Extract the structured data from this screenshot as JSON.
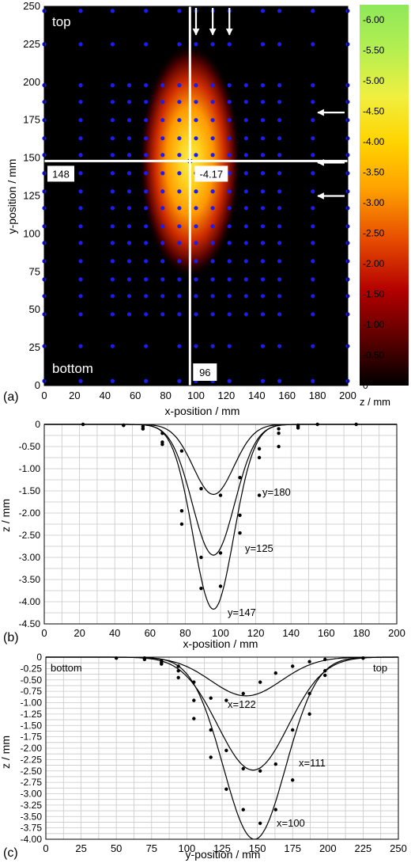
{
  "chart_data": [
    {
      "panel": "(a)",
      "type": "heatmap",
      "xlabel": "x-position / mm",
      "ylabel": "y-position / mm",
      "xlim": [
        0,
        200
      ],
      "ylim": [
        0,
        250
      ],
      "xticks": [
        0,
        20,
        40,
        60,
        80,
        100,
        120,
        140,
        160,
        180,
        200
      ],
      "yticks": [
        0,
        25,
        50,
        75,
        100,
        125,
        150,
        175,
        200,
        225,
        250
      ],
      "corner_labels": {
        "top": "top",
        "bottom": "bottom"
      },
      "crosshair": {
        "x": 96,
        "y": 148,
        "x_label": "96",
        "y_label": "148",
        "value_label": "-4.17"
      },
      "peak": {
        "x": 96,
        "y": 148,
        "z": -4.17,
        "sigma_x": 13,
        "sigma_y": 30
      },
      "measurement_grid": {
        "x": [
          0,
          24,
          45,
          56,
          67,
          78,
          89,
          100,
          111,
          122,
          133,
          144,
          155,
          177,
          200
        ],
        "y": [
          3,
          26,
          47,
          59,
          70,
          82,
          94,
          105,
          117,
          128,
          140,
          152,
          163,
          175,
          187,
          198,
          225,
          247
        ]
      },
      "arrows": [
        {
          "direction": "down",
          "x": 100
        },
        {
          "direction": "down",
          "x": 111
        },
        {
          "direction": "down",
          "x": 122
        },
        {
          "direction": "left",
          "y": 180
        },
        {
          "direction": "left",
          "y": 147
        },
        {
          "direction": "left",
          "y": 125
        }
      ],
      "colorbar": {
        "label": "z / mm",
        "range": [
          0,
          -6.25
        ],
        "ticks": [
          "-6.00",
          "-5.50",
          "-5.00",
          "-4.50",
          "-4.00",
          "-3.50",
          "-3.00",
          "-2.50",
          "-2.00",
          "-1.50",
          "-1.00",
          "-0.50",
          "0"
        ],
        "colors": [
          "#000000",
          "#5a0000",
          "#b30000",
          "#e64a00",
          "#ffa300",
          "#ffd400",
          "#f0ef40",
          "#b5ef50",
          "#8fe85a"
        ]
      }
    },
    {
      "panel": "(b)",
      "type": "line",
      "xlabel": "x-position / mm",
      "ylabel": "z / mm",
      "xlim": [
        0,
        200
      ],
      "ylim": [
        -4.5,
        0
      ],
      "xticks": [
        0,
        20,
        40,
        60,
        80,
        100,
        120,
        140,
        160,
        180,
        200
      ],
      "yticks": [
        "0",
        "-0.50",
        "-1.00",
        "-1.50",
        "-2.00",
        "-2.50",
        "-3.00",
        "-3.50",
        "-4.00",
        "-4.50"
      ],
      "series": [
        {
          "name": "y=180",
          "center": 96,
          "amp": -1.58,
          "sigma": 11.5,
          "points": [
            [
              22,
              0
            ],
            [
              45,
              -0.02
            ],
            [
              56,
              -0.05
            ],
            [
              67,
              -0.2
            ],
            [
              78,
              -0.6
            ],
            [
              89,
              -1.45
            ],
            [
              100,
              -1.6
            ],
            [
              111,
              -1.2
            ],
            [
              122,
              -0.55
            ],
            [
              133,
              -0.1
            ],
            [
              144,
              -0.02
            ],
            [
              177,
              0
            ]
          ]
        },
        {
          "name": "y=125",
          "center": 96,
          "amp": -2.95,
          "sigma": 12,
          "points": [
            [
              45,
              -0.02
            ],
            [
              56,
              -0.1
            ],
            [
              67,
              -0.45
            ],
            [
              78,
              -1.95
            ],
            [
              89,
              -3.0
            ],
            [
              100,
              -2.9
            ],
            [
              111,
              -2.45
            ],
            [
              122,
              -1.6
            ],
            [
              133,
              -0.5
            ],
            [
              144,
              -0.08
            ],
            [
              155,
              0
            ]
          ]
        },
        {
          "name": "y=147",
          "center": 96,
          "amp": -4.17,
          "sigma": 11.5,
          "points": [
            [
              45,
              -0.02
            ],
            [
              56,
              -0.1
            ],
            [
              67,
              -0.4
            ],
            [
              78,
              -2.25
            ],
            [
              89,
              -3.7
            ],
            [
              100,
              -3.65
            ],
            [
              111,
              -2.05
            ],
            [
              122,
              -0.75
            ],
            [
              133,
              -0.2
            ],
            [
              144,
              -0.05
            ]
          ]
        }
      ],
      "curve_labels": [
        "y=180",
        "y=125",
        "y=147"
      ]
    },
    {
      "panel": "(c)",
      "type": "line",
      "xlabel": "y-position / mm",
      "ylabel": "z / mm",
      "xlim": [
        0,
        250
      ],
      "ylim": [
        -4.0,
        0
      ],
      "xticks": [
        0,
        25,
        50,
        75,
        100,
        125,
        150,
        175,
        200,
        225,
        250
      ],
      "yticks": [
        "0",
        "-0.25",
        "-0.50",
        "-0.75",
        "-1.00",
        "-1.25",
        "-1.50",
        "-1.75",
        "-2.00",
        "-2.25",
        "-2.50",
        "-2.75",
        "-3.00",
        "-3.25",
        "-3.50",
        "-3.75",
        "-4.00"
      ],
      "corner_labels": {
        "left": "bottom",
        "right": "top"
      },
      "series": [
        {
          "name": "x=122",
          "center": 142,
          "amp": -0.85,
          "sigma": 25,
          "points": [
            [
              50,
              -0.02
            ],
            [
              70,
              -0.05
            ],
            [
              82,
              -0.15
            ],
            [
              94,
              -0.3
            ],
            [
              105,
              -0.55
            ],
            [
              117,
              -0.9
            ],
            [
              128,
              -0.95
            ],
            [
              140,
              -0.8
            ],
            [
              152,
              -0.55
            ],
            [
              163,
              -0.35
            ],
            [
              175,
              -0.2
            ],
            [
              187,
              -0.1
            ],
            [
              198,
              -0.05
            ]
          ]
        },
        {
          "name": "x=111",
          "center": 147,
          "amp": -2.48,
          "sigma": 25,
          "points": [
            [
              70,
              -0.02
            ],
            [
              82,
              -0.12
            ],
            [
              94,
              -0.45
            ],
            [
              105,
              -0.95
            ],
            [
              117,
              -1.6
            ],
            [
              128,
              -2.05
            ],
            [
              140,
              -2.45
            ],
            [
              152,
              -2.5
            ],
            [
              163,
              -2.35
            ],
            [
              175,
              -1.6
            ],
            [
              187,
              -0.8
            ],
            [
              198,
              -0.3
            ],
            [
              225,
              -0.02
            ]
          ]
        },
        {
          "name": "x=100",
          "center": 148,
          "amp": -4.0,
          "sigma": 22,
          "points": [
            [
              70,
              -0.02
            ],
            [
              82,
              -0.08
            ],
            [
              94,
              -0.2
            ],
            [
              105,
              -1.35
            ],
            [
              117,
              -2.2
            ],
            [
              128,
              -2.9
            ],
            [
              140,
              -3.35
            ],
            [
              152,
              -3.65
            ],
            [
              163,
              -3.35
            ],
            [
              175,
              -2.7
            ],
            [
              187,
              -1.25
            ],
            [
              198,
              -0.4
            ],
            [
              225,
              -0.02
            ]
          ]
        }
      ],
      "curve_labels": [
        "x=122",
        "x=111",
        "x=100"
      ]
    }
  ]
}
